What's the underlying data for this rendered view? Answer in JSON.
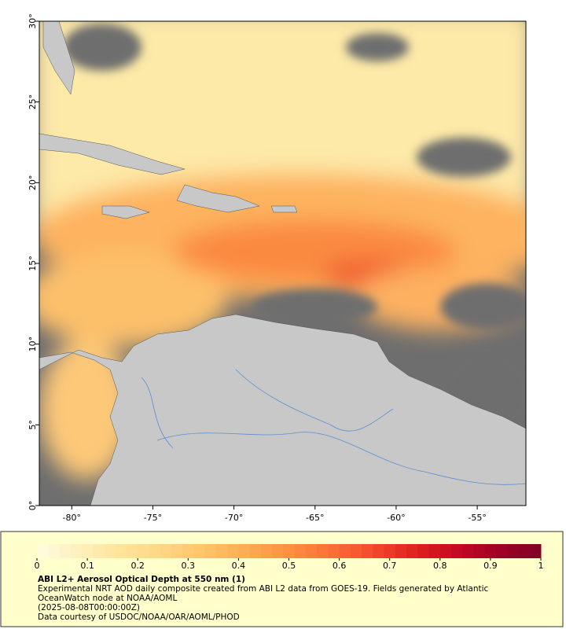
{
  "chart_data": {
    "type": "map",
    "xlim": [
      -82,
      -52
    ],
    "ylim": [
      0,
      30
    ],
    "xticks": [
      {
        "value": -80,
        "label": "-80°"
      },
      {
        "value": -75,
        "label": "-75°"
      },
      {
        "value": -70,
        "label": "-70°"
      },
      {
        "value": -65,
        "label": "-65°"
      },
      {
        "value": -60,
        "label": "-60°"
      },
      {
        "value": -55,
        "label": "-55°"
      }
    ],
    "yticks": [
      {
        "value": 0,
        "label": "0°"
      },
      {
        "value": 5,
        "label": "5°"
      },
      {
        "value": 10,
        "label": "10°"
      },
      {
        "value": 15,
        "label": "15°"
      },
      {
        "value": 20,
        "label": "20°"
      },
      {
        "value": 25,
        "label": "25°"
      },
      {
        "value": 30,
        "label": "30°"
      }
    ],
    "colorbar": {
      "range": [
        0,
        1
      ],
      "ticks": [
        0,
        0.1,
        0.2,
        0.3,
        0.4,
        0.5,
        0.6,
        0.7,
        0.8,
        0.9,
        1
      ],
      "colors": [
        "#fffde0",
        "#fff0bd",
        "#ffe49a",
        "#fed683",
        "#fec46a",
        "#fdab55",
        "#fd9043",
        "#fc7038",
        "#f34a2d",
        "#e0221f",
        "#c50a23",
        "#a00026",
        "#800026"
      ]
    },
    "title": "ABI L2+ Aerosol Optical Depth at 550 nm (1)",
    "description": "Experimental NRT AOD daily composite created from ABI L2 data from GOES-19. Fields generated by Atlantic OceanWatch node at NOAA/AOML",
    "timestamp": "(2025-08-08T00:00:00Z)",
    "credit": "Data courtesy of USDOC/NOAA/OAR/AOML/PHOD"
  }
}
